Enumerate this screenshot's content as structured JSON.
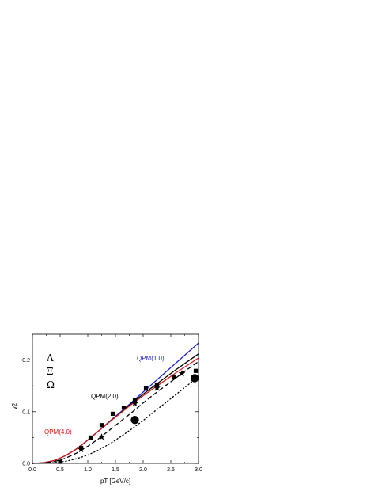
{
  "chart_data": {
    "type": "line",
    "xlabel": "pT [GeV/c]",
    "ylabel": "v2",
    "xlim": [
      0.0,
      3.0
    ],
    "ylim": [
      0.0,
      0.25
    ],
    "xticks": [
      "0.0",
      "0.5",
      "1.0",
      "1.5",
      "2.0",
      "2.5",
      "3.0"
    ],
    "yticks": [
      "0.0",
      "0.1",
      "0.2"
    ],
    "legend_symbols": [
      "Λ",
      "Ξ",
      "Ω"
    ],
    "annotations": [
      {
        "text": "QPM(1.0)",
        "color": "#1f1fd6"
      },
      {
        "text": "QPM(2.0)",
        "color": "#000000"
      },
      {
        "text": "QPM(4.0)",
        "color": "#e01818"
      }
    ],
    "curves": [
      {
        "color": "#1f1fd6",
        "style": "solid",
        "x": [
          0.0,
          0.2,
          0.4,
          0.6,
          0.8,
          1.0,
          1.2,
          1.4,
          1.6,
          1.8,
          2.0,
          2.2,
          2.4,
          2.6,
          2.8,
          3.0
        ],
        "y": [
          0.0,
          0.0012,
          0.0055,
          0.015,
          0.028,
          0.045,
          0.063,
          0.082,
          0.1,
          0.119,
          0.138,
          0.157,
          0.176,
          0.195,
          0.214,
          0.233
        ]
      },
      {
        "color": "#000000",
        "style": "solid",
        "x": [
          0.0,
          0.2,
          0.4,
          0.6,
          0.8,
          1.0,
          1.2,
          1.4,
          1.6,
          1.8,
          2.0,
          2.2,
          2.4,
          2.6,
          2.8,
          3.0
        ],
        "y": [
          0.0,
          0.0012,
          0.0055,
          0.015,
          0.028,
          0.045,
          0.063,
          0.081,
          0.099,
          0.117,
          0.134,
          0.15,
          0.166,
          0.182,
          0.197,
          0.212
        ]
      },
      {
        "color": "#e01818",
        "style": "solid",
        "x": [
          0.0,
          0.2,
          0.4,
          0.6,
          0.8,
          1.0,
          1.2,
          1.4,
          1.6,
          1.8,
          2.0,
          2.2,
          2.4,
          2.6,
          2.8,
          3.0
        ],
        "y": [
          0.0,
          0.0012,
          0.0055,
          0.015,
          0.028,
          0.045,
          0.063,
          0.081,
          0.098,
          0.115,
          0.131,
          0.146,
          0.161,
          0.176,
          0.19,
          0.204
        ]
      },
      {
        "color": "#000000",
        "style": "dashed",
        "x": [
          0.0,
          0.2,
          0.4,
          0.6,
          0.8,
          1.0,
          1.2,
          1.4,
          1.6,
          1.8,
          2.0,
          2.2,
          2.4,
          2.6,
          2.8,
          3.0
        ],
        "y": [
          0.0,
          0.0008,
          0.0035,
          0.01,
          0.02,
          0.033,
          0.048,
          0.065,
          0.082,
          0.099,
          0.117,
          0.134,
          0.15,
          0.166,
          0.182,
          0.197
        ]
      },
      {
        "color": "#000000",
        "style": "dotted",
        "x": [
          0.0,
          0.2,
          0.4,
          0.6,
          0.8,
          1.0,
          1.2,
          1.4,
          1.6,
          1.8,
          2.0,
          2.2,
          2.4,
          2.6,
          2.8,
          3.0
        ],
        "y": [
          0.0,
          0.0004,
          0.0015,
          0.004,
          0.009,
          0.016,
          0.026,
          0.038,
          0.052,
          0.067,
          0.083,
          0.1,
          0.117,
          0.134,
          0.151,
          0.168
        ]
      }
    ],
    "data_points": [
      {
        "marker": "square",
        "x": [
          0.5,
          0.88,
          1.05,
          1.25,
          1.45,
          1.65,
          1.85,
          2.05,
          2.25,
          2.55,
          2.95
        ],
        "y": [
          0.003,
          0.03,
          0.05,
          0.074,
          0.096,
          0.108,
          0.123,
          0.145,
          0.152,
          0.167,
          0.179
        ]
      },
      {
        "marker": "star",
        "x": [
          0.88,
          1.25,
          1.85,
          2.25,
          2.7
        ],
        "y": [
          0.027,
          0.051,
          0.116,
          0.146,
          0.174
        ]
      },
      {
        "marker": "circle",
        "x": [
          1.85,
          2.93
        ],
        "y": [
          0.084,
          0.165
        ]
      }
    ]
  }
}
